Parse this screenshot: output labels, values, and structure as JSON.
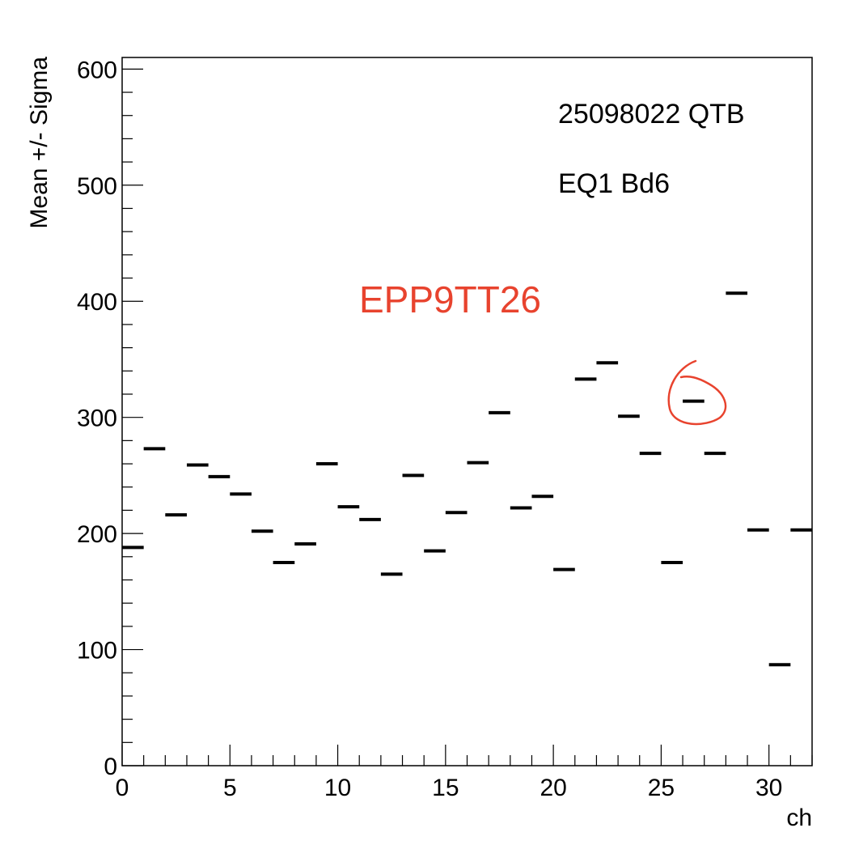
{
  "chart_data": {
    "type": "scatter",
    "marker": "horizontal-dash",
    "title": "",
    "xlabel": "ch",
    "ylabel": "Mean +/- Sigma",
    "xlim": [
      0,
      32
    ],
    "ylim": [
      0,
      610
    ],
    "x_ticks": [
      0,
      5,
      10,
      15,
      20,
      25,
      30
    ],
    "y_ticks": [
      0,
      100,
      200,
      300,
      400,
      500,
      600
    ],
    "grid": false,
    "legend": "none",
    "annotations": [
      {
        "text": "25098022 QTB",
        "color": "#000000"
      },
      {
        "text": "EQ1 Bd6",
        "color": "#000000"
      },
      {
        "text": "EPP9TT26",
        "color": "#e8432e"
      }
    ],
    "highlight": {
      "x": 26.5,
      "y": 314,
      "shape": "hand-drawn-circle",
      "color": "#e8432e"
    },
    "x": [
      0.5,
      1.5,
      2.5,
      3.5,
      4.5,
      5.5,
      6.5,
      7.5,
      8.5,
      9.5,
      10.5,
      11.5,
      12.5,
      13.5,
      14.5,
      15.5,
      16.5,
      17.5,
      18.5,
      19.5,
      20.5,
      21.5,
      22.5,
      23.5,
      24.5,
      25.5,
      26.5,
      27.5,
      28.5,
      29.5,
      30.5,
      31.5
    ],
    "values": [
      188,
      273,
      216,
      259,
      249,
      234,
      202,
      175,
      191,
      260,
      223,
      212,
      165,
      250,
      185,
      218,
      261,
      304,
      222,
      232,
      169,
      333,
      347,
      301,
      269,
      175,
      314,
      269,
      407,
      203,
      87,
      203
    ]
  }
}
